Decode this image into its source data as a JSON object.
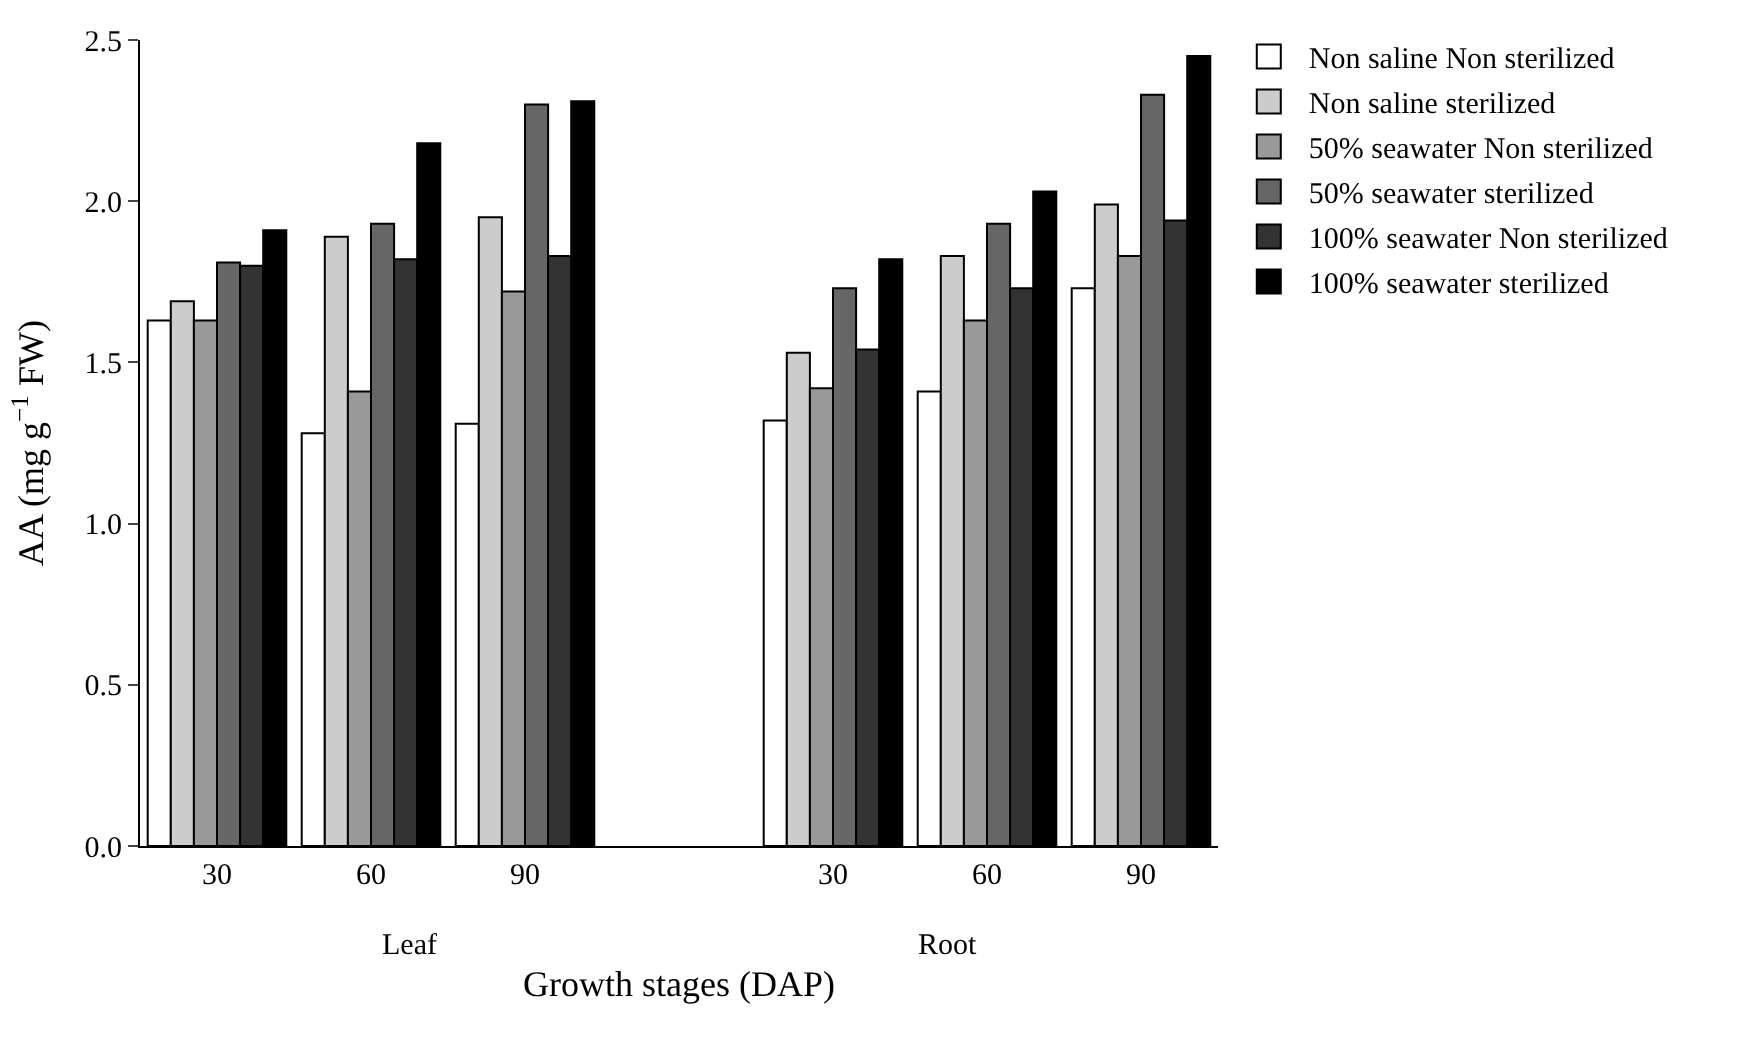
{
  "chart_data": {
    "type": "bar",
    "xlabel": "Growth stages (DAP)",
    "ylabel": "AA (mg g$^{−1}$ FW)",
    "categories": [
      "30",
      "60",
      "90",
      null,
      "30",
      "60",
      "90"
    ],
    "series": [
      {
        "name": "Non saline Non sterilized",
        "color": "#ffffff",
        "values": [
          1.63,
          1.28,
          1.31,
          null,
          1.32,
          1.41,
          1.73
        ]
      },
      {
        "name": "Non saline sterilized",
        "color": "#cccccc",
        "values": [
          1.69,
          1.89,
          1.95,
          null,
          1.53,
          1.83,
          1.99
        ]
      },
      {
        "name": "50% seawater Non sterilized",
        "color": "#999999",
        "values": [
          1.63,
          1.41,
          1.72,
          null,
          1.42,
          1.63,
          1.83
        ]
      },
      {
        "name": "50% seawater sterilized",
        "color": "#666666",
        "values": [
          1.81,
          1.93,
          2.3,
          null,
          1.73,
          1.93,
          2.33
        ]
      },
      {
        "name": "100% seawater Non sterilized",
        "color": "#333333",
        "values": [
          1.8,
          1.82,
          1.83,
          null,
          1.54,
          1.73,
          1.94
        ]
      },
      {
        "name": "100% seawater sterilized",
        "color": "#000000",
        "values": [
          1.91,
          2.18,
          2.31,
          null,
          1.82,
          2.03,
          2.45
        ]
      }
    ],
    "annotations": [
      "Leaf",
      "Root"
    ],
    "ylim": [
      0,
      2.5
    ],
    "yticks": [
      {
        "value": 0,
        "label": "0.0"
      },
      {
        "value": 0.5,
        "label": "0.5"
      },
      {
        "value": 1,
        "label": "1.0"
      },
      {
        "value": 1.5,
        "label": "1.5"
      },
      {
        "value": 2,
        "label": "2.0"
      },
      {
        "value": 2.5,
        "label": "2.5"
      }
    ],
    "legend": "top right"
  }
}
